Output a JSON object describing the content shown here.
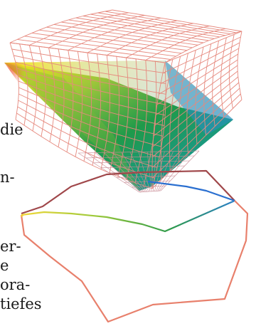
{
  "text_fragments": [
    "die",
    "n-",
    "er-",
    "e",
    "ora-",
    "tiefes"
  ],
  "colors": {
    "wireframe_outer": "#e6897e",
    "wireframe_inner": "#c98a94",
    "outline_dark": "#a0474a",
    "outline_blue": "#2a6fd0",
    "outline_green": "#4a9a3c",
    "outline_yellow": "#f0d23a",
    "outline_red": "#e25a48",
    "gamut_yellow": "#f3e61a",
    "gamut_green": "#1e9a4a",
    "gamut_cyan": "#2aa8d8",
    "gamut_blue": "#1e5aa8",
    "gamut_white": "#f7f3f0"
  }
}
